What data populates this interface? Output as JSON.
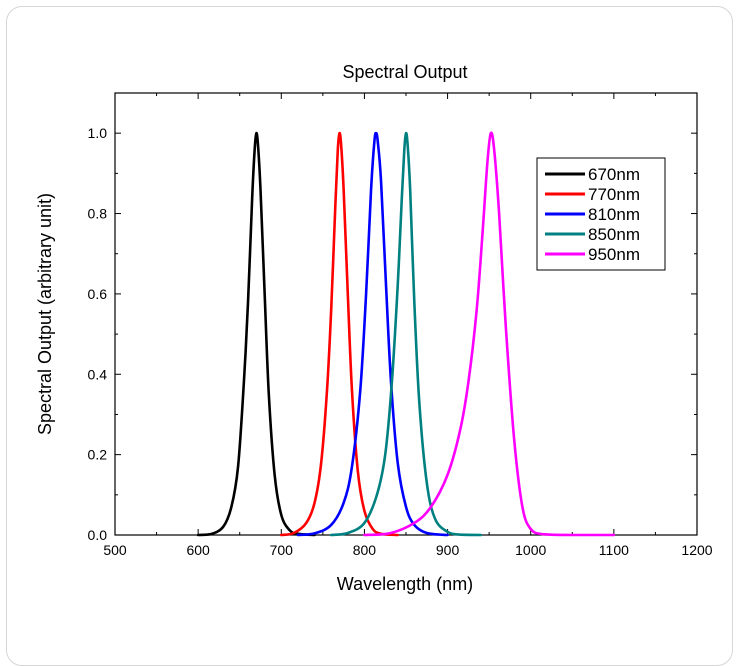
{
  "chart_data": {
    "type": "line",
    "title": "Spectral Output",
    "xlabel": "Wavelength (nm)",
    "ylabel": "Spectral Output (arbitrary unit)",
    "xlim": [
      500,
      1200
    ],
    "ylim": [
      0,
      1.1
    ],
    "xticks": [
      "500",
      "600",
      "700",
      "800",
      "900",
      "1000",
      "1100",
      "1200"
    ],
    "yticks": [
      "0.0",
      "0.2",
      "0.4",
      "0.6",
      "0.8",
      "1.0"
    ],
    "grid": false,
    "legend_position": "top-right",
    "series": [
      {
        "name": "670nm",
        "color": "#000000",
        "x": [
          600,
          615,
          630,
          640,
          648,
          655,
          660,
          665,
          668,
          670,
          672,
          675,
          680,
          685,
          692,
          700,
          710,
          720,
          740
        ],
        "y": [
          0.0,
          0.002,
          0.02,
          0.07,
          0.17,
          0.38,
          0.58,
          0.84,
          0.96,
          1.0,
          0.97,
          0.86,
          0.6,
          0.35,
          0.15,
          0.05,
          0.012,
          0.003,
          0.0
        ]
      },
      {
        "name": "770nm",
        "color": "#ff0000",
        "x": [
          700,
          715,
          730,
          740,
          748,
          755,
          760,
          765,
          768,
          770,
          772,
          775,
          780,
          785,
          792,
          800,
          810,
          820,
          840
        ],
        "y": [
          0.0,
          0.005,
          0.03,
          0.08,
          0.18,
          0.36,
          0.56,
          0.82,
          0.96,
          1.0,
          0.97,
          0.86,
          0.6,
          0.36,
          0.16,
          0.06,
          0.015,
          0.003,
          0.0
        ]
      },
      {
        "name": "810nm",
        "color": "#0000ff",
        "x": [
          720,
          740,
          760,
          775,
          785,
          795,
          802,
          808,
          812,
          814,
          816,
          820,
          826,
          832,
          840,
          850,
          860,
          875,
          900
        ],
        "y": [
          0.0,
          0.004,
          0.025,
          0.08,
          0.17,
          0.36,
          0.6,
          0.86,
          0.98,
          1.0,
          0.98,
          0.88,
          0.62,
          0.38,
          0.18,
          0.07,
          0.025,
          0.005,
          0.0
        ]
      },
      {
        "name": "850nm",
        "color": "#008080",
        "x": [
          760,
          780,
          800,
          815,
          825,
          833,
          840,
          845,
          848,
          850,
          852,
          855,
          860,
          866,
          875,
          885,
          900,
          915,
          940
        ],
        "y": [
          0.0,
          0.005,
          0.03,
          0.1,
          0.2,
          0.38,
          0.62,
          0.84,
          0.96,
          1.0,
          0.97,
          0.86,
          0.58,
          0.33,
          0.13,
          0.04,
          0.008,
          0.001,
          0.0
        ]
      },
      {
        "name": "950nm",
        "color": "#ff00ff",
        "x": [
          800,
          830,
          860,
          880,
          900,
          915,
          925,
          935,
          942,
          948,
          952,
          956,
          962,
          970,
          980,
          990,
          1000,
          1015,
          1050,
          1100
        ],
        "y": [
          0.0,
          0.004,
          0.03,
          0.07,
          0.15,
          0.26,
          0.38,
          0.56,
          0.75,
          0.93,
          1.0,
          0.96,
          0.8,
          0.52,
          0.24,
          0.07,
          0.015,
          0.002,
          0.0,
          0.0
        ]
      }
    ]
  }
}
